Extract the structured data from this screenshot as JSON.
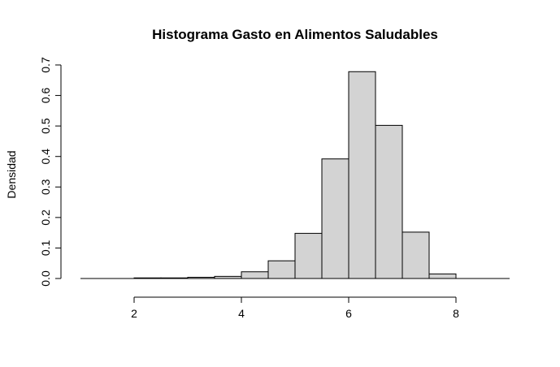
{
  "chart_data": {
    "type": "bar",
    "subtype": "histogram",
    "title": "Histograma Gasto en Alimentos Saludables",
    "xlabel": "",
    "ylabel": "Densidad",
    "bins": [
      {
        "start": 2.0,
        "end": 2.5,
        "density": 0.002
      },
      {
        "start": 2.5,
        "end": 3.0,
        "density": 0.002
      },
      {
        "start": 3.0,
        "end": 3.5,
        "density": 0.004
      },
      {
        "start": 3.5,
        "end": 4.0,
        "density": 0.007
      },
      {
        "start": 4.0,
        "end": 4.5,
        "density": 0.022
      },
      {
        "start": 4.5,
        "end": 5.0,
        "density": 0.058
      },
      {
        "start": 5.0,
        "end": 5.5,
        "density": 0.148
      },
      {
        "start": 5.5,
        "end": 6.0,
        "density": 0.392
      },
      {
        "start": 6.0,
        "end": 6.5,
        "density": 0.678
      },
      {
        "start": 6.5,
        "end": 7.0,
        "density": 0.502
      },
      {
        "start": 7.0,
        "end": 7.5,
        "density": 0.152
      },
      {
        "start": 7.5,
        "end": 8.0,
        "density": 0.015
      }
    ],
    "xlim": [
      1,
      9
    ],
    "ylim": [
      0,
      0.7
    ],
    "x_ticks": [
      2,
      4,
      6,
      8
    ],
    "y_ticks": [
      0.0,
      0.1,
      0.2,
      0.3,
      0.4,
      0.5,
      0.6,
      0.7
    ],
    "x_tick_labels": [
      "2",
      "4",
      "6",
      "8"
    ],
    "y_tick_labels": [
      "0.0",
      "0.1",
      "0.2",
      "0.3",
      "0.4",
      "0.5",
      "0.6",
      "0.7"
    ],
    "bar_fill": "#d3d3d3",
    "bar_stroke": "#000000",
    "grid": false,
    "legend": "none"
  }
}
